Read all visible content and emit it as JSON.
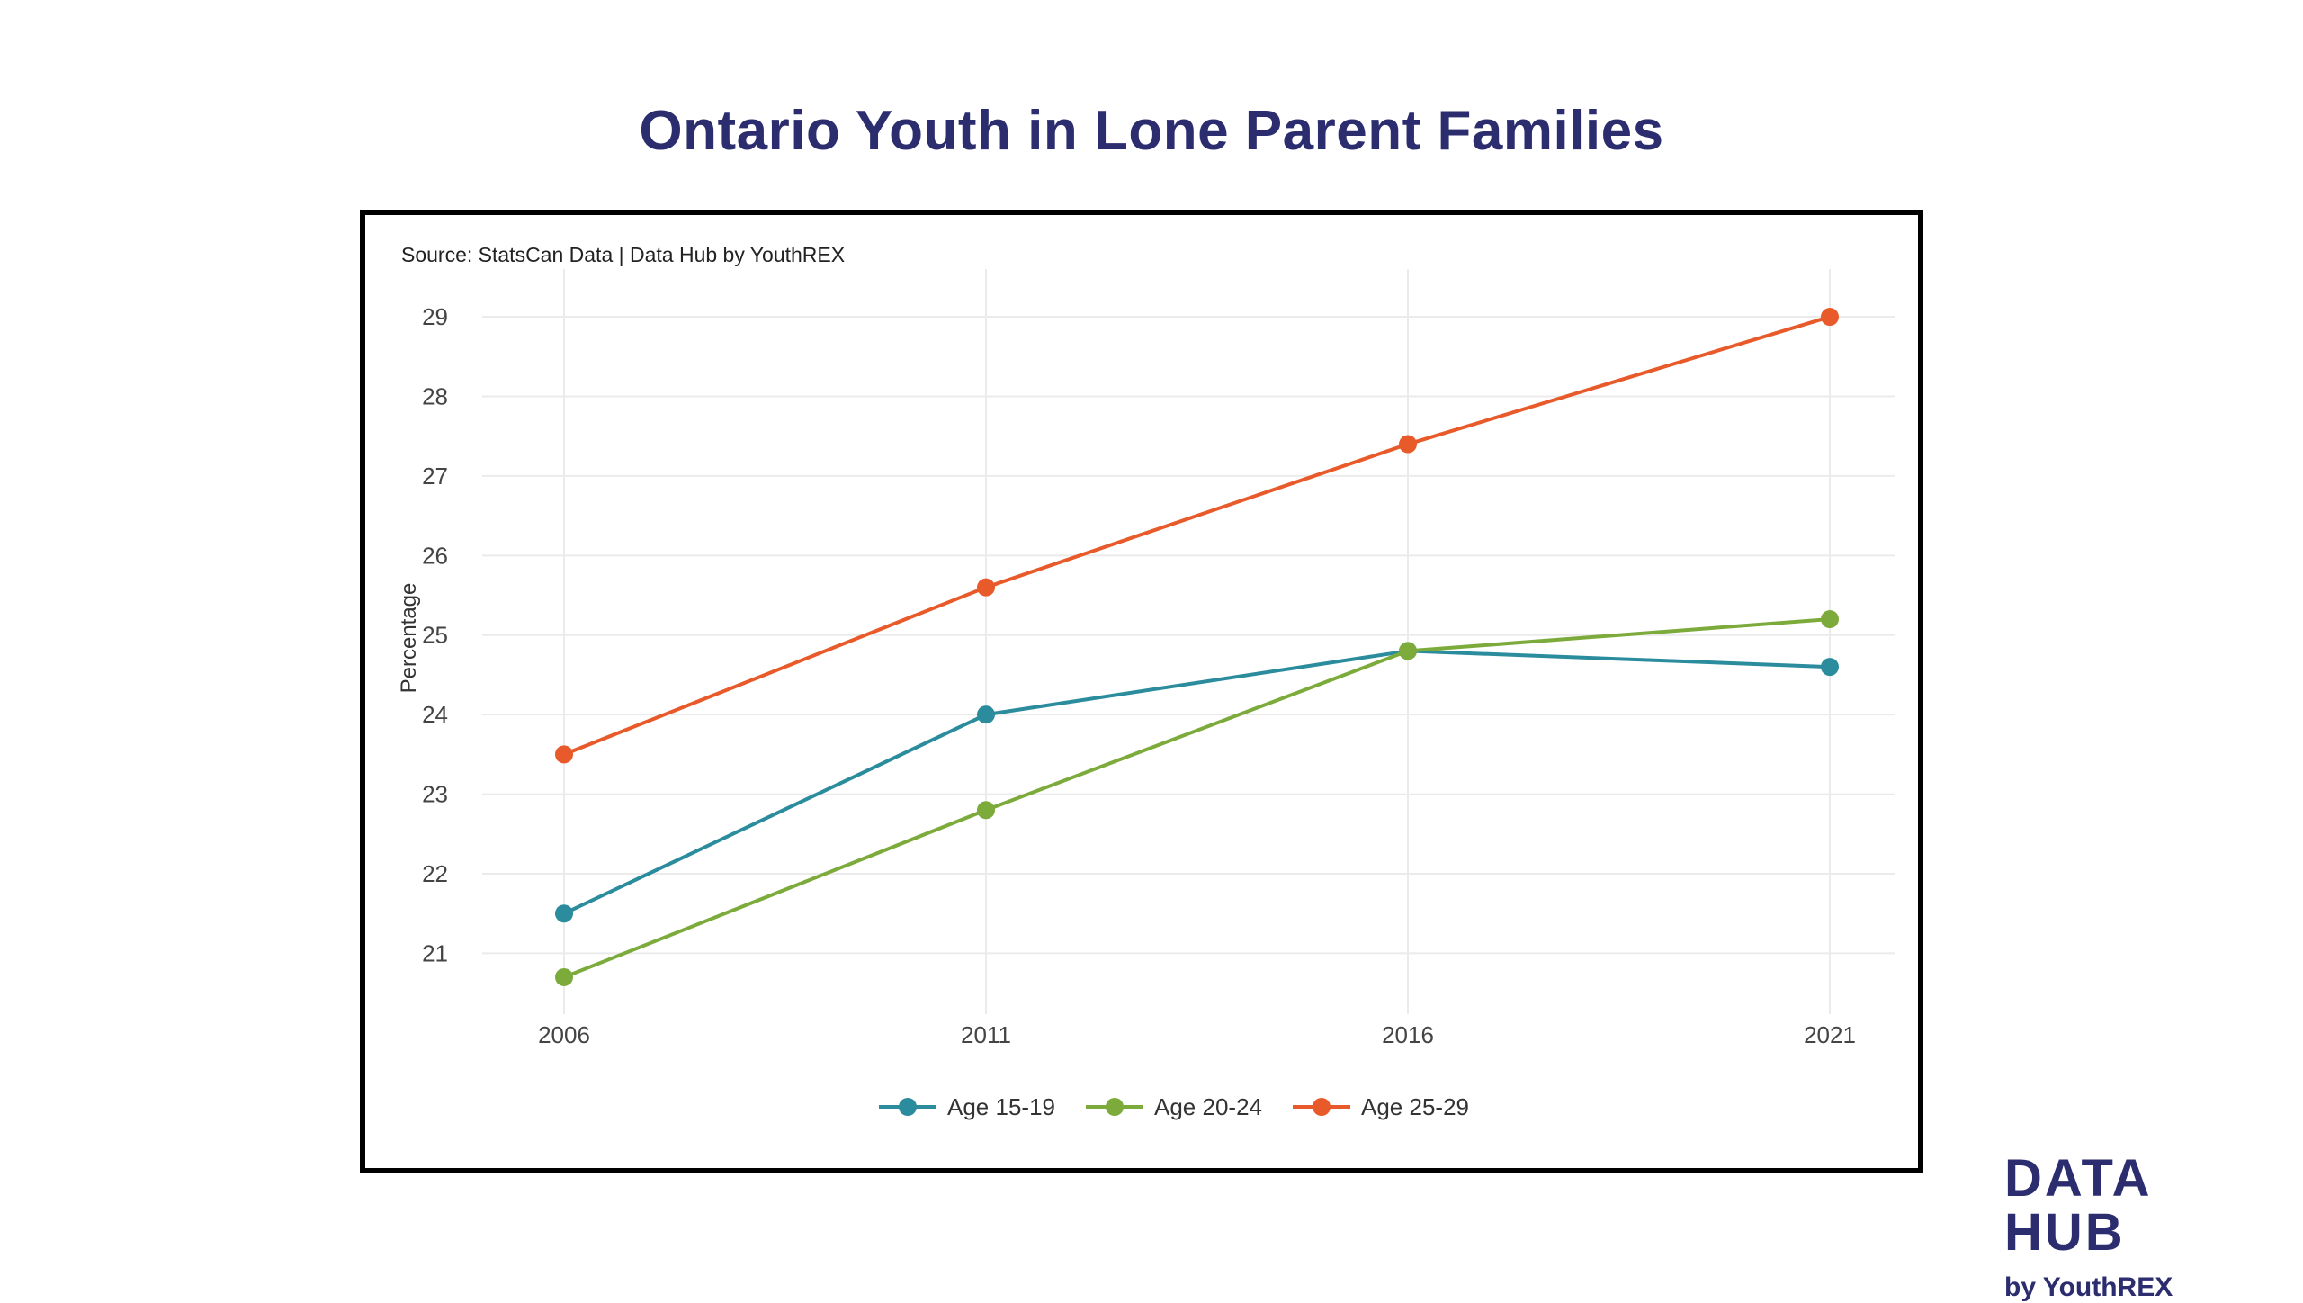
{
  "title": "Ontario Youth in Lone Parent Families",
  "logo": {
    "main": "DATA HUB",
    "sub": "by YouthREX"
  },
  "chart_data": {
    "type": "line",
    "source_note": "Source: StatsCan Data | Data Hub by YouthREX",
    "xlabel": "",
    "ylabel": "Percentage",
    "x": [
      2006,
      2011,
      2016,
      2021
    ],
    "x_tick_labels": [
      "2006",
      "2011",
      "2016",
      "2021"
    ],
    "y_ticks": [
      21,
      22,
      23,
      24,
      25,
      26,
      27,
      28,
      29
    ],
    "ylim": [
      20.1,
      29.6
    ],
    "grid": true,
    "legend_position": "bottom",
    "series": [
      {
        "name": "Age 15-19",
        "color": "#2a8c9c",
        "values": [
          21.5,
          24.0,
          24.8,
          24.6
        ]
      },
      {
        "name": "Age 20-24",
        "color": "#7cab3c",
        "values": [
          20.7,
          22.8,
          24.8,
          25.2
        ]
      },
      {
        "name": "Age 25-29",
        "color": "#e85a2a",
        "values": [
          23.5,
          25.6,
          27.4,
          29.0
        ]
      }
    ]
  }
}
